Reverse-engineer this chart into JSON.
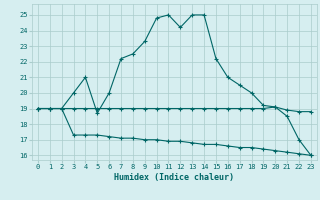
{
  "xlabel": "Humidex (Indice chaleur)",
  "background_color": "#d6eef0",
  "grid_color": "#aacccc",
  "line_color": "#006666",
  "xlim": [
    -0.5,
    23.5
  ],
  "ylim": [
    15.7,
    25.7
  ],
  "xticks": [
    0,
    1,
    2,
    3,
    4,
    5,
    6,
    7,
    8,
    9,
    10,
    11,
    12,
    13,
    14,
    15,
    16,
    17,
    18,
    19,
    20,
    21,
    22,
    23
  ],
  "yticks": [
    16,
    17,
    18,
    19,
    20,
    21,
    22,
    23,
    24,
    25
  ],
  "line1_x": [
    0,
    1,
    2,
    3,
    4,
    5,
    6,
    7,
    8,
    9,
    10,
    11,
    12,
    13,
    14,
    15,
    16,
    17,
    18,
    19,
    20,
    21,
    22,
    23
  ],
  "line1_y": [
    19,
    19,
    19,
    20,
    21,
    18.7,
    20,
    22.2,
    22.5,
    23.3,
    24.8,
    25.0,
    24.2,
    25.0,
    25.0,
    22.2,
    21.0,
    20.5,
    20.0,
    19.2,
    19.1,
    18.5,
    17.0,
    16.0
  ],
  "line2_x": [
    0,
    1,
    2,
    3,
    4,
    5,
    6,
    7,
    8,
    9,
    10,
    11,
    12,
    13,
    14,
    15,
    16,
    17,
    18,
    19,
    20,
    21,
    22,
    23
  ],
  "line2_y": [
    19.0,
    19.0,
    19.0,
    19.0,
    19.0,
    19.0,
    19.0,
    19.0,
    19.0,
    19.0,
    19.0,
    19.0,
    19.0,
    19.0,
    19.0,
    19.0,
    19.0,
    19.0,
    19.0,
    19.0,
    19.1,
    18.9,
    18.8,
    18.8
  ],
  "line3_x": [
    0,
    1,
    2,
    3,
    4,
    5,
    6,
    7,
    8,
    9,
    10,
    11,
    12,
    13,
    14,
    15,
    16,
    17,
    18,
    19,
    20,
    21,
    22,
    23
  ],
  "line3_y": [
    19.0,
    19.0,
    19.0,
    17.3,
    17.3,
    17.3,
    17.2,
    17.1,
    17.1,
    17.0,
    17.0,
    16.9,
    16.9,
    16.8,
    16.7,
    16.7,
    16.6,
    16.5,
    16.5,
    16.4,
    16.3,
    16.2,
    16.1,
    16.0
  ]
}
